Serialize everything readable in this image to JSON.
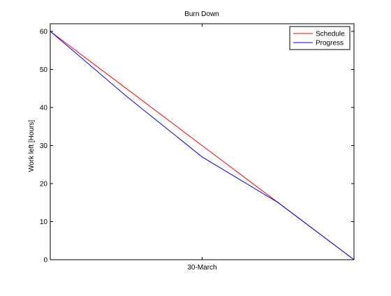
{
  "chart_data": {
    "type": "line",
    "title": "Burn Down",
    "xlabel": "",
    "ylabel": "Work left [Hours]",
    "x_ticks": [
      "30-March"
    ],
    "ylim": [
      0,
      62
    ],
    "y_ticks": [
      0,
      10,
      20,
      30,
      40,
      50,
      60
    ],
    "grid": false,
    "legend_position": "top-right",
    "x_domain": [
      0,
      4
    ],
    "series": [
      {
        "name": "Schedule",
        "color": "#ff0000",
        "x": [
          0,
          1,
          2,
          3,
          4
        ],
        "y": [
          60,
          45,
          30,
          15,
          0
        ]
      },
      {
        "name": "Progress",
        "color": "#0000ff",
        "x": [
          0,
          1,
          2,
          3,
          4
        ],
        "y": [
          60,
          43,
          27,
          15,
          0
        ]
      }
    ]
  }
}
